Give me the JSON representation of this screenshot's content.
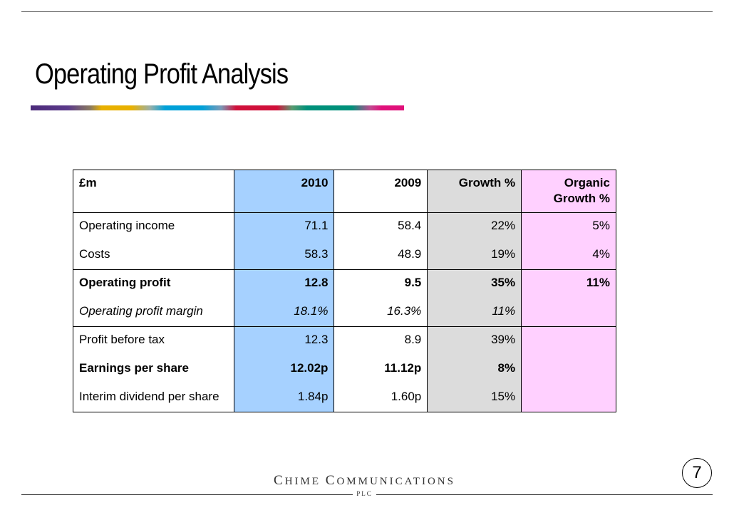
{
  "slide": {
    "title": "Operating Profit Analysis",
    "page_number": "7"
  },
  "table": {
    "headers": [
      "£m",
      "2010",
      "2009",
      "Growth %",
      "Organic Growth %"
    ],
    "rows": [
      {
        "label": "Operating income",
        "v2010": "71.1",
        "v2009": "58.4",
        "growth": "22%",
        "organic": "5%"
      },
      {
        "label": "Costs",
        "v2010": "58.3",
        "v2009": "48.9",
        "growth": "19%",
        "organic": "4%"
      },
      {
        "label": "Operating profit",
        "v2010": "12.8",
        "v2009": "9.5",
        "growth": "35%",
        "organic": "11%"
      },
      {
        "label": "Operating profit margin",
        "v2010": "18.1%",
        "v2009": "16.3%",
        "growth": "11%",
        "organic": ""
      },
      {
        "label": "Profit before tax",
        "v2010": "12.3",
        "v2009": "8.9",
        "growth": "39%",
        "organic": ""
      },
      {
        "label": "Earnings per share",
        "v2010": "12.02p",
        "v2009": "11.12p",
        "growth": "8%",
        "organic": ""
      },
      {
        "label": "Interim dividend per share",
        "v2010": "1.84p",
        "v2009": "1.60p",
        "growth": "15%",
        "organic": ""
      }
    ]
  },
  "footer": {
    "company_c": "C",
    "company_rest1": "HIME ",
    "company_c2": "C",
    "company_rest2": "OMMUNICATIONS",
    "plc": "PLC"
  },
  "colors": {
    "col_2010": "#a6d1ff",
    "col_growth": "#dcdcdc",
    "col_organic": "#ffd0ff"
  }
}
